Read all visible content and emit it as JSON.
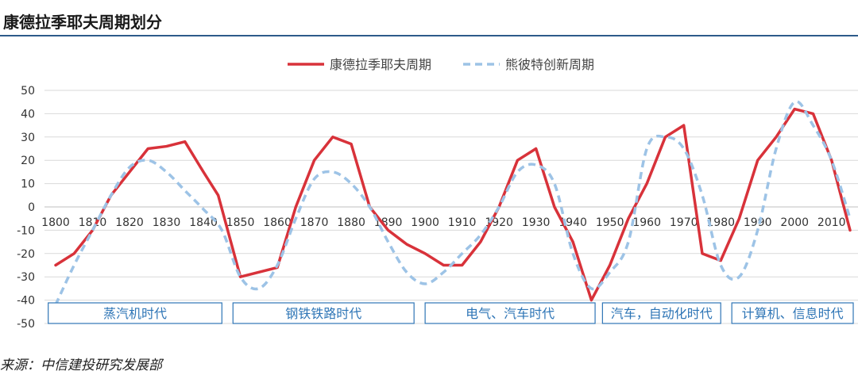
{
  "title": "康德拉季耶夫周期划分",
  "source": "来源：中信建投研究发展部",
  "colors": {
    "kondratieff": "#d8323a",
    "schumpeter": "#9dc3e6",
    "era_border": "#2e75b6",
    "era_text": "#2e75b6",
    "rule": "#2d5a8a"
  },
  "chart_data": {
    "type": "line",
    "title": "",
    "xlabel": "",
    "ylabel": "",
    "xlim": [
      1800,
      2015
    ],
    "ylim": [
      -50,
      50
    ],
    "y_ticks": [
      50,
      40,
      30,
      20,
      10,
      0,
      -10,
      -20,
      -30,
      -40,
      -50
    ],
    "x_ticks": [
      1800,
      1810,
      1820,
      1830,
      1840,
      1850,
      1860,
      1870,
      1880,
      1890,
      1900,
      1910,
      1920,
      1930,
      1940,
      1950,
      1960,
      1970,
      1980,
      1990,
      2000,
      2010
    ],
    "x_tick_labels": [
      "1800",
      "1810",
      "1820",
      "1830",
      "1840",
      "1850",
      "1860",
      "1870",
      "1880",
      "1890",
      "1900",
      "1910",
      "1920",
      "1930",
      "1940",
      "1950",
      "1960",
      "1970",
      "1980",
      "1990",
      "2000",
      "2010"
    ],
    "grid": "horizontal",
    "legend_position": "top-center",
    "series": [
      {
        "name": "康德拉季耶夫周期",
        "style": "solid",
        "x": [
          1800,
          1805,
          1810,
          1815,
          1820,
          1825,
          1830,
          1835,
          1840,
          1844,
          1850,
          1855,
          1860,
          1865,
          1870,
          1875,
          1880,
          1885,
          1890,
          1895,
          1900,
          1905,
          1910,
          1915,
          1920,
          1925,
          1930,
          1935,
          1940,
          1945,
          1950,
          1955,
          1960,
          1965,
          1970,
          1975,
          1980,
          1985,
          1990,
          1995,
          2000,
          2005,
          2010,
          2015
        ],
        "y": [
          -25,
          -20,
          -10,
          5,
          15,
          25,
          26,
          28,
          15,
          5,
          -30,
          -28,
          -26,
          0,
          20,
          30,
          27,
          0,
          -10,
          -16,
          -20,
          -25,
          -25,
          -15,
          0,
          20,
          25,
          0,
          -15,
          -40,
          -25,
          -5,
          10,
          30,
          35,
          -20,
          -23,
          -5,
          20,
          30,
          42,
          40,
          20,
          -10
        ]
      },
      {
        "name": "熊彼特创新周期",
        "style": "dashed",
        "x": [
          1800,
          1805,
          1810,
          1815,
          1820,
          1825,
          1830,
          1835,
          1840,
          1845,
          1850,
          1855,
          1860,
          1865,
          1870,
          1875,
          1880,
          1885,
          1890,
          1895,
          1900,
          1905,
          1910,
          1915,
          1920,
          1925,
          1930,
          1935,
          1940,
          1945,
          1950,
          1955,
          1960,
          1965,
          1970,
          1975,
          1980,
          1985,
          1990,
          1995,
          2000,
          2005,
          2010,
          2015
        ],
        "y": [
          -42,
          -25,
          -10,
          5,
          17,
          20,
          15,
          7,
          -1,
          -10,
          -30,
          -35,
          -25,
          -5,
          12,
          15,
          10,
          0,
          -15,
          -28,
          -33,
          -28,
          -20,
          -12,
          0,
          15,
          18,
          10,
          -20,
          -35,
          -28,
          -15,
          25,
          30,
          25,
          5,
          -25,
          -30,
          -10,
          25,
          45,
          35,
          20,
          -5
        ]
      }
    ],
    "eras": [
      {
        "label": "蒸汽机时代",
        "start": 1798,
        "end": 1845
      },
      {
        "label": "钢铁铁路时代",
        "start": 1848,
        "end": 1897
      },
      {
        "label": "电气、汽车时代",
        "start": 1900,
        "end": 1946
      },
      {
        "label": "汽车，自动化时代",
        "start": 1948,
        "end": 1980
      },
      {
        "label": "计算机、信息时代",
        "start": 1983,
        "end": 2016
      }
    ]
  }
}
